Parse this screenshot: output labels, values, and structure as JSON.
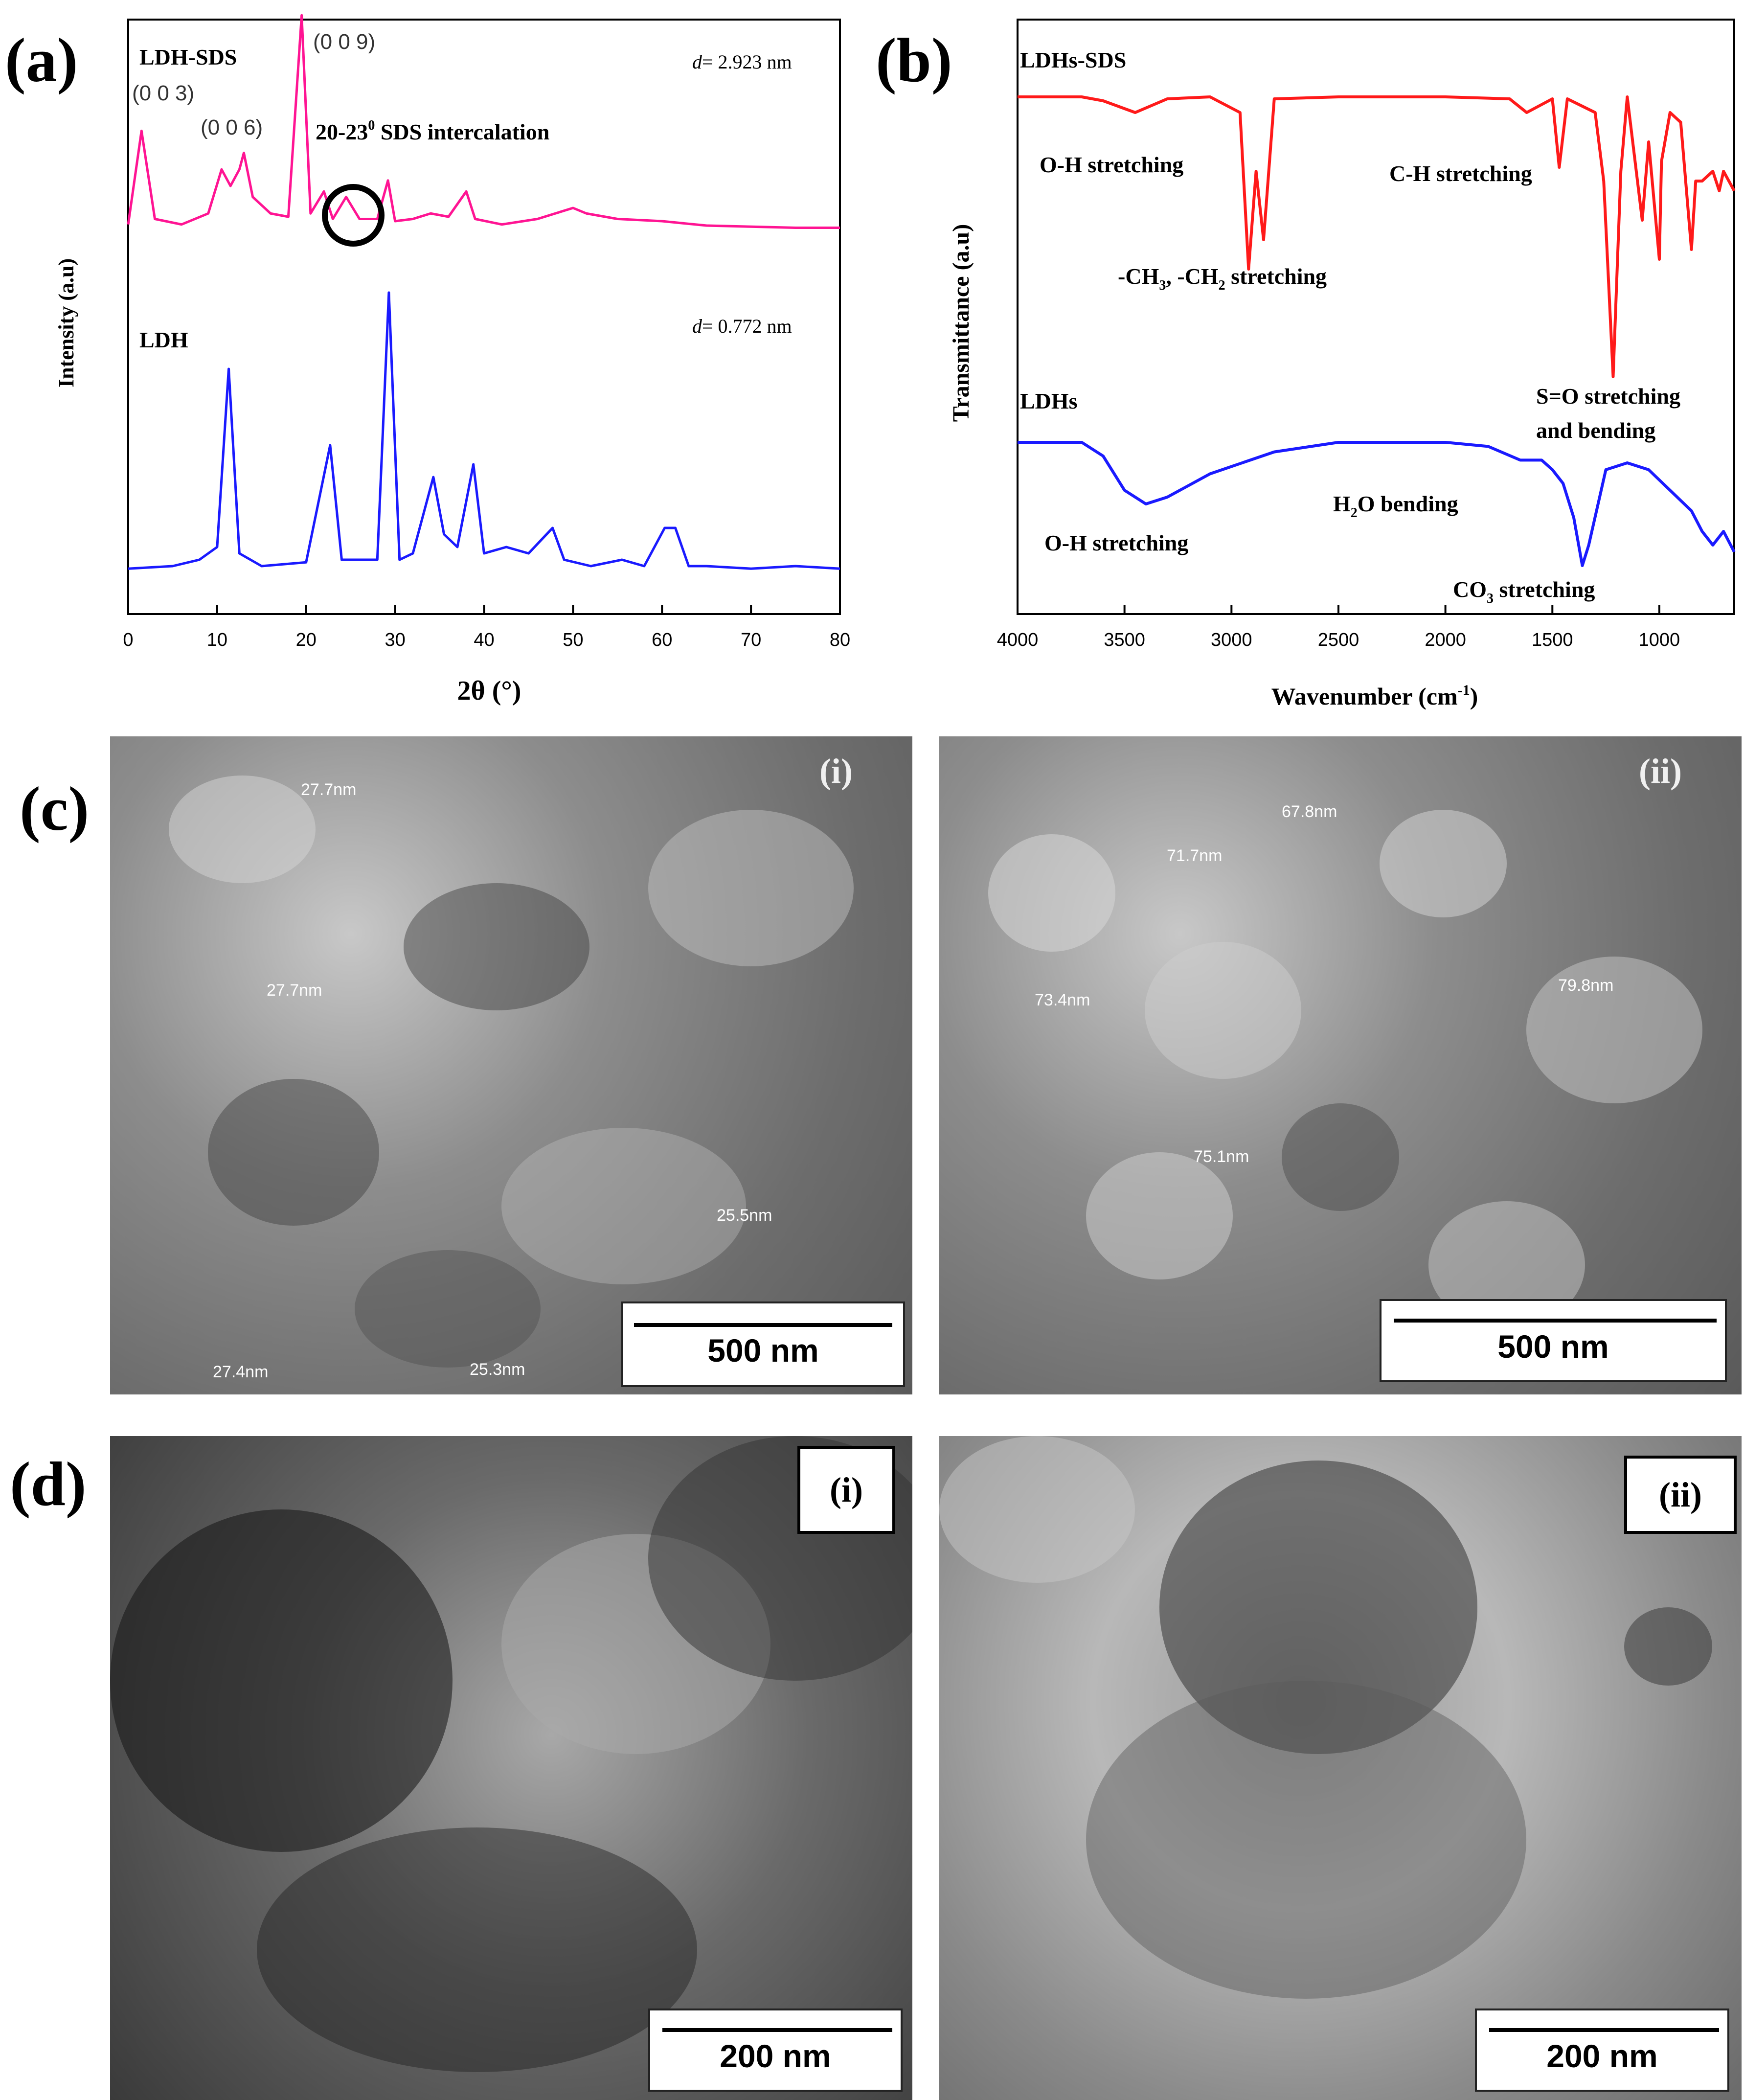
{
  "panels": {
    "a": "(a)",
    "b": "(b)",
    "c": "(c)",
    "d": "(d)"
  },
  "chart_data": [
    {
      "type": "line",
      "panel": "(a)",
      "xlabel": "2θ (°)",
      "ylabel": "Intensity (a.u)",
      "xlim": [
        0,
        80
      ],
      "xticks": [
        "0",
        "10",
        "20",
        "30",
        "40",
        "50",
        "60",
        "70",
        "80"
      ],
      "series": [
        {
          "name": "LDH-SDS",
          "color": "#ff1493",
          "x": [
            0,
            1.5,
            3,
            6,
            9,
            10.5,
            11.5,
            12.5,
            13,
            14,
            16,
            18,
            19.5,
            20.5,
            22,
            23,
            24.5,
            26,
            28,
            29.2,
            30,
            32,
            34,
            36,
            38,
            39,
            42,
            46,
            50,
            51.5,
            55,
            60,
            65,
            70,
            75,
            80
          ],
          "y": [
            0.05,
            0.9,
            0.1,
            0.05,
            0.15,
            0.55,
            0.4,
            0.55,
            0.7,
            0.3,
            0.15,
            0.12,
            1.95,
            0.15,
            0.35,
            0.1,
            0.3,
            0.1,
            0.1,
            0.45,
            0.08,
            0.1,
            0.15,
            0.12,
            0.35,
            0.1,
            0.05,
            0.1,
            0.2,
            0.15,
            0.1,
            0.08,
            0.04,
            0.03,
            0.02,
            0.02
          ]
        },
        {
          "name": "LDH",
          "color": "#1a1aff",
          "x": [
            0,
            5,
            8,
            10,
            11.3,
            12.5,
            15,
            20,
            22.7,
            24,
            28,
            29.3,
            30.5,
            32,
            34.3,
            35.5,
            37,
            38.8,
            40,
            42.5,
            45,
            47.7,
            49,
            52,
            55.5,
            58,
            60.3,
            61.5,
            63,
            65,
            70,
            75,
            80
          ],
          "y": [
            0.03,
            0.05,
            0.1,
            0.2,
            1.6,
            0.15,
            0.05,
            0.08,
            1.0,
            0.1,
            0.1,
            2.2,
            0.1,
            0.15,
            0.75,
            0.3,
            0.2,
            0.85,
            0.15,
            0.2,
            0.15,
            0.35,
            0.1,
            0.05,
            0.1,
            0.05,
            0.35,
            0.35,
            0.05,
            0.05,
            0.03,
            0.05,
            0.03
          ]
        }
      ],
      "annotations": {
        "ldh_sds_label": "LDH-SDS",
        "ldh_label": "LDH",
        "peak_003": "(0 0 3)",
        "peak_006": "(0 0 6)",
        "peak_009": "(0 0 9)",
        "intercalation_label": "20-23",
        "intercalation_sup": "0",
        "intercalation_suffix": " SDS intercalation",
        "d_sds_label": "d",
        "d_sds_value": "= 2.923 nm",
        "d_ldh_label": "d",
        "d_ldh_value": "= 0.772 nm"
      }
    },
    {
      "type": "line",
      "panel": "(b)",
      "xlabel_main": "Wavenumber (cm",
      "xlabel_sup": "-1",
      "xlabel_end": ")",
      "ylabel": "Transmittance (a.u)",
      "xlim": [
        4000,
        650
      ],
      "xticks": [
        "4000",
        "3500",
        "3000",
        "2500",
        "2000",
        "1500",
        "1000"
      ],
      "series": [
        {
          "name": "LDHs-SDS",
          "color": "#ff1a1a",
          "x": [
            4000,
            3700,
            3600,
            3450,
            3300,
            3100,
            2960,
            2920,
            2885,
            2850,
            2800,
            2500,
            2000,
            1700,
            1620,
            1500,
            1468,
            1430,
            1300,
            1260,
            1216,
            1180,
            1150,
            1080,
            1050,
            1000,
            990,
            950,
            900,
            850,
            830,
            800,
            750,
            720,
            700,
            650
          ],
          "y": [
            0.98,
            0.98,
            0.96,
            0.9,
            0.97,
            0.98,
            0.9,
            0.1,
            0.6,
            0.25,
            0.97,
            0.98,
            0.98,
            0.97,
            0.9,
            0.97,
            0.62,
            0.97,
            0.9,
            0.55,
            -0.45,
            0.6,
            0.98,
            0.35,
            0.75,
            0.15,
            0.65,
            0.9,
            0.85,
            0.2,
            0.55,
            0.55,
            0.6,
            0.5,
            0.6,
            0.5
          ]
        },
        {
          "name": "LDHs",
          "color": "#1a1aff",
          "x": [
            4000,
            3700,
            3600,
            3500,
            3400,
            3300,
            3100,
            2800,
            2500,
            2000,
            1800,
            1650,
            1550,
            1500,
            1450,
            1400,
            1360,
            1330,
            1250,
            1150,
            1050,
            950,
            850,
            800,
            750,
            700,
            650
          ],
          "y": [
            0.95,
            0.95,
            0.85,
            0.6,
            0.5,
            0.55,
            0.72,
            0.88,
            0.95,
            0.95,
            0.92,
            0.82,
            0.82,
            0.75,
            0.65,
            0.4,
            0.05,
            0.2,
            0.75,
            0.8,
            0.75,
            0.6,
            0.45,
            0.3,
            0.2,
            0.3,
            0.15
          ]
        }
      ],
      "annotations": {
        "sds_series_label": "LDHs-SDS",
        "ldhs_series_label": "LDHs",
        "oh_top": "O-H stretching",
        "ch_stretch": "C-H stretching",
        "ch3_a": "-CH",
        "ch3_sub": "3",
        "ch3_b": ", -CH",
        "ch2_sub": "2",
        "ch3_c": " stretching",
        "so_1": "S=O stretching",
        "so_2": "and bending",
        "h2o_a": "H",
        "h2o_sub": "2",
        "h2o_b": "O bending",
        "oh_bottom": "O-H stretching",
        "co3_a": "CO",
        "co3_sub": "3",
        "co3_b": " stretching"
      }
    }
  ],
  "micrographs": {
    "c_i": {
      "tag": "(i)",
      "scale": "500 nm",
      "measurements": [
        "27.7nm",
        "27.7nm",
        "25.5nm",
        "27.4nm",
        "25.3nm"
      ]
    },
    "c_ii": {
      "tag": "(ii)",
      "scale": "500 nm",
      "measurements": [
        "67.8nm",
        "71.7nm",
        "73.4nm",
        "79.8nm",
        "75.1nm"
      ]
    },
    "d_i": {
      "tag": "(i)",
      "scale": "200 nm"
    },
    "d_ii": {
      "tag": "(ii)",
      "scale": "200 nm"
    }
  }
}
